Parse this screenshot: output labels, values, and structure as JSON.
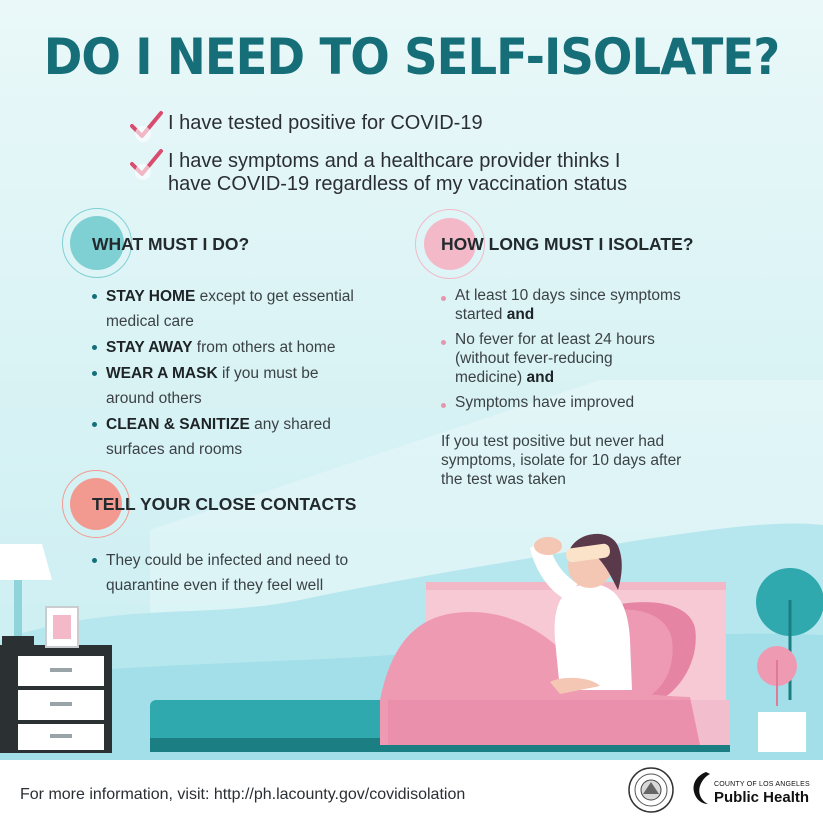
{
  "title": "DO I NEED TO SELF-ISOLATE?",
  "criteria": [
    {
      "lines": [
        "I have tested positive for COVID-19"
      ]
    },
    {
      "lines": [
        "I have symptoms and a healthcare provider thinks I",
        "have COVID-19 regardless of my vaccination status"
      ]
    }
  ],
  "what_to_do": {
    "heading": "WHAT MUST I DO?",
    "items": [
      {
        "strong": "STAY HOME",
        "rest": " except to get essential",
        "rest2": "medical care"
      },
      {
        "strong": "STAY AWAY",
        "rest": " from others at home",
        "rest2": ""
      },
      {
        "strong": "WEAR A MASK",
        "rest": " if you must be",
        "rest2": "around others"
      },
      {
        "strong": "CLEAN & SANITIZE",
        "rest": " any shared",
        "rest2": "surfaces and rooms"
      }
    ]
  },
  "close_contacts": {
    "heading": "TELL YOUR CLOSE CONTACTS",
    "items": [
      {
        "line1": "They could be infected and need to",
        "line2": "quarantine even if they feel well"
      }
    ]
  },
  "how_long": {
    "heading": "HOW LONG MUST I ISOLATE?",
    "items": [
      {
        "l1": "At least 10 days since symptoms",
        "l2": "started ",
        "strong": "and",
        "l3": ""
      },
      {
        "l1": "No fever for at least 24 hours",
        "l2": "(without fever-reducing",
        "l3": "medicine) ",
        "strong": "and"
      },
      {
        "l1": "Symptoms have improved"
      }
    ],
    "note_lines": [
      "If you test positive but never had",
      "symptoms, isolate for 10 days after",
      "the test was taken"
    ]
  },
  "footer": {
    "text": "For more information, visit: http://ph.lacounty.gov/covidisolation",
    "logo_small": "COUNTY OF LOS ANGELES",
    "logo_big": "Public Health"
  },
  "colors": {
    "title": "#166f78",
    "teal_accent": "#7fd0d3",
    "pink_accent": "#f3b9c9",
    "salmon_accent": "#f29a8f",
    "check": "#d94c6e"
  },
  "icons": [
    "checkmark-icon",
    "county-seal-icon",
    "public-health-logo-icon"
  ]
}
